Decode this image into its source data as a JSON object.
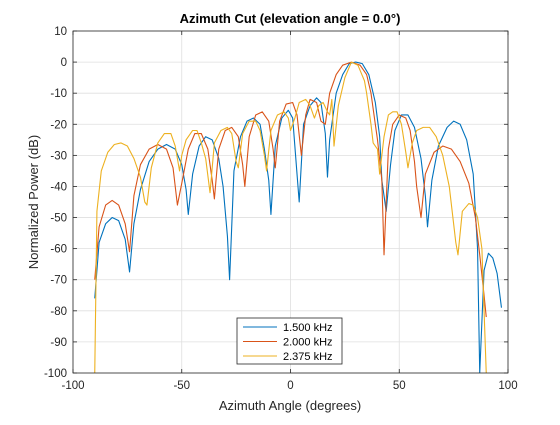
{
  "chart_data": {
    "type": "line",
    "title": "Azimuth Cut (elevation angle = 0.0°)",
    "xlabel": "Azimuth Angle (degrees)",
    "ylabel": "Normalized Power (dB)",
    "xlim": [
      -100,
      100
    ],
    "ylim": [
      -100,
      10
    ],
    "xticks": [
      -100,
      -50,
      0,
      50,
      100
    ],
    "xtick_labels": [
      "-100",
      "-50",
      "0",
      "50",
      "100"
    ],
    "yticks": [
      10,
      0,
      -10,
      -20,
      -30,
      -40,
      -50,
      -60,
      -70,
      -80,
      -90,
      -100
    ],
    "ytick_labels": [
      "10",
      "0",
      "-10",
      "-20",
      "-30",
      "-40",
      "-50",
      "-60",
      "-70",
      "-80",
      "-90",
      "-100"
    ],
    "grid": true,
    "legend_position": "bottom-center",
    "series": [
      {
        "name": "1.500 kHz",
        "color": "#0072BD",
        "points": [
          [
            -90,
            -76
          ],
          [
            -88,
            -58
          ],
          [
            -85,
            -52
          ],
          [
            -82,
            -50
          ],
          [
            -79,
            -51
          ],
          [
            -76,
            -57
          ],
          [
            -74,
            -67.5
          ],
          [
            -72,
            -52
          ],
          [
            -69,
            -41
          ],
          [
            -65,
            -32
          ],
          [
            -61,
            -28
          ],
          [
            -57,
            -26.5
          ],
          [
            -53,
            -28
          ],
          [
            -50,
            -33
          ],
          [
            -48,
            -41
          ],
          [
            -47,
            -49
          ],
          [
            -45,
            -36
          ],
          [
            -42,
            -27
          ],
          [
            -39,
            -24
          ],
          [
            -36,
            -25
          ],
          [
            -33,
            -31
          ],
          [
            -31,
            -40
          ],
          [
            -29,
            -56
          ],
          [
            -28,
            -70
          ],
          [
            -26,
            -35
          ],
          [
            -23,
            -24
          ],
          [
            -20,
            -19
          ],
          [
            -17,
            -18
          ],
          [
            -14,
            -20
          ],
          [
            -12,
            -28
          ],
          [
            -10,
            -38
          ],
          [
            -9,
            -49
          ],
          [
            -7,
            -27
          ],
          [
            -4,
            -18
          ],
          [
            -1,
            -15.5
          ],
          [
            1,
            -18
          ],
          [
            3,
            -36
          ],
          [
            4,
            -45
          ],
          [
            6,
            -20
          ],
          [
            9,
            -14
          ],
          [
            12,
            -11.5
          ],
          [
            14,
            -13
          ],
          [
            16,
            -23
          ],
          [
            17,
            -37
          ],
          [
            18,
            -25
          ],
          [
            21,
            -10
          ],
          [
            24,
            -4
          ],
          [
            27,
            -0.5
          ],
          [
            30,
            0
          ],
          [
            33,
            -0.5
          ],
          [
            36,
            -4
          ],
          [
            39,
            -13
          ],
          [
            41,
            -24
          ],
          [
            42,
            -38
          ],
          [
            44,
            -48
          ],
          [
            46,
            -33
          ],
          [
            48,
            -22
          ],
          [
            51,
            -17
          ],
          [
            54,
            -17
          ],
          [
            57,
            -21
          ],
          [
            60,
            -31
          ],
          [
            62,
            -43
          ],
          [
            63,
            -53
          ],
          [
            65,
            -38
          ],
          [
            68,
            -27
          ],
          [
            72,
            -21
          ],
          [
            75,
            -19
          ],
          [
            78,
            -20
          ],
          [
            81,
            -25
          ],
          [
            84,
            -36
          ],
          [
            86,
            -60
          ],
          [
            87,
            -100
          ],
          [
            89,
            -67
          ],
          [
            91,
            -61.5
          ],
          [
            93,
            -63
          ],
          [
            95,
            -68
          ],
          [
            97,
            -79
          ]
        ]
      },
      {
        "name": "2.000 kHz",
        "color": "#D95319",
        "points": [
          [
            -90,
            -70
          ],
          [
            -88,
            -53
          ],
          [
            -85,
            -46
          ],
          [
            -82,
            -44.5
          ],
          [
            -79,
            -46
          ],
          [
            -76,
            -52
          ],
          [
            -74,
            -61
          ],
          [
            -72,
            -43
          ],
          [
            -69,
            -33
          ],
          [
            -65,
            -28
          ],
          [
            -61,
            -26.5
          ],
          [
            -57,
            -28
          ],
          [
            -54,
            -34
          ],
          [
            -52,
            -46
          ],
          [
            -50,
            -39
          ],
          [
            -47,
            -28
          ],
          [
            -44,
            -23
          ],
          [
            -41,
            -23
          ],
          [
            -38,
            -28
          ],
          [
            -36,
            -38
          ],
          [
            -35,
            -44
          ],
          [
            -33,
            -28
          ],
          [
            -30,
            -22
          ],
          [
            -27,
            -21
          ],
          [
            -24,
            -24
          ],
          [
            -22,
            -33
          ],
          [
            -21,
            -40
          ],
          [
            -19,
            -24
          ],
          [
            -16,
            -17
          ],
          [
            -13,
            -16
          ],
          [
            -10,
            -19
          ],
          [
            -8,
            -28
          ],
          [
            -7,
            -34
          ],
          [
            -5,
            -19
          ],
          [
            -2,
            -13.5
          ],
          [
            1,
            -13
          ],
          [
            3,
            -17
          ],
          [
            5,
            -30
          ],
          [
            7,
            -17
          ],
          [
            9,
            -12
          ],
          [
            12,
            -13
          ],
          [
            14,
            -19
          ],
          [
            16,
            -20
          ],
          [
            18,
            -10
          ],
          [
            21,
            -4
          ],
          [
            24,
            -1
          ],
          [
            28,
            0
          ],
          [
            32,
            -1
          ],
          [
            35,
            -4
          ],
          [
            37,
            -10
          ],
          [
            39,
            -20
          ],
          [
            40,
            -25
          ],
          [
            42,
            -38
          ],
          [
            43,
            -62
          ],
          [
            45,
            -28
          ],
          [
            47,
            -20
          ],
          [
            50,
            -17
          ],
          [
            53,
            -18
          ],
          [
            55,
            -22
          ],
          [
            57,
            -32
          ],
          [
            58,
            -40
          ],
          [
            60,
            -50
          ],
          [
            62,
            -36
          ],
          [
            66,
            -29
          ],
          [
            70,
            -27
          ],
          [
            74,
            -28
          ],
          [
            78,
            -32
          ],
          [
            82,
            -39
          ],
          [
            85,
            -50
          ],
          [
            87,
            -62
          ],
          [
            89,
            -75
          ],
          [
            90,
            -82
          ]
        ]
      },
      {
        "name": "2.375 kHz",
        "color": "#EDB120",
        "points": [
          [
            -90,
            -100
          ],
          [
            -89,
            -48
          ],
          [
            -87,
            -35
          ],
          [
            -84,
            -29
          ],
          [
            -81,
            -26.5
          ],
          [
            -78,
            -26
          ],
          [
            -75,
            -27
          ],
          [
            -72,
            -31
          ],
          [
            -69,
            -37
          ],
          [
            -67,
            -45
          ],
          [
            -66,
            -46
          ],
          [
            -64,
            -34
          ],
          [
            -61,
            -26
          ],
          [
            -58,
            -23
          ],
          [
            -55,
            -23
          ],
          [
            -53,
            -27
          ],
          [
            -51,
            -35
          ],
          [
            -50,
            -30
          ],
          [
            -48,
            -25
          ],
          [
            -45,
            -22
          ],
          [
            -43,
            -22
          ],
          [
            -41,
            -26
          ],
          [
            -39,
            -31
          ],
          [
            -37,
            -42
          ],
          [
            -35,
            -26
          ],
          [
            -32,
            -22
          ],
          [
            -29,
            -21
          ],
          [
            -27,
            -23
          ],
          [
            -25,
            -32
          ],
          [
            -24,
            -34
          ],
          [
            -22,
            -23
          ],
          [
            -19,
            -19
          ],
          [
            -16,
            -19
          ],
          [
            -14,
            -22
          ],
          [
            -12,
            -30
          ],
          [
            -11,
            -35
          ],
          [
            -9,
            -22
          ],
          [
            -6,
            -17
          ],
          [
            -3,
            -16
          ],
          [
            -1,
            -18
          ],
          [
            0,
            -22
          ],
          [
            2,
            -18
          ],
          [
            4,
            -13
          ],
          [
            7,
            -12
          ],
          [
            9,
            -14
          ],
          [
            11,
            -18
          ],
          [
            13,
            -14
          ],
          [
            15,
            -13
          ],
          [
            17,
            -16
          ],
          [
            18,
            -17
          ],
          [
            19,
            -12
          ],
          [
            20,
            -27
          ],
          [
            22,
            -14
          ],
          [
            25,
            -5
          ],
          [
            28,
            0
          ],
          [
            31,
            -1
          ],
          [
            34,
            -6
          ],
          [
            35,
            -10
          ],
          [
            37,
            -20
          ],
          [
            38,
            -26
          ],
          [
            40,
            -28
          ],
          [
            41,
            -36
          ],
          [
            43,
            -24
          ],
          [
            45,
            -17
          ],
          [
            47,
            -16
          ],
          [
            49,
            -16
          ],
          [
            51,
            -20
          ],
          [
            53,
            -29
          ],
          [
            54,
            -34
          ],
          [
            56,
            -26
          ],
          [
            58,
            -22
          ],
          [
            61,
            -21
          ],
          [
            64,
            -21
          ],
          [
            67,
            -24
          ],
          [
            70,
            -30
          ],
          [
            73,
            -40
          ],
          [
            76,
            -58
          ],
          [
            77,
            -62
          ],
          [
            79,
            -48
          ],
          [
            82,
            -45.5
          ],
          [
            84,
            -46
          ],
          [
            86,
            -50
          ],
          [
            88,
            -60
          ],
          [
            90,
            -100
          ]
        ]
      }
    ]
  }
}
